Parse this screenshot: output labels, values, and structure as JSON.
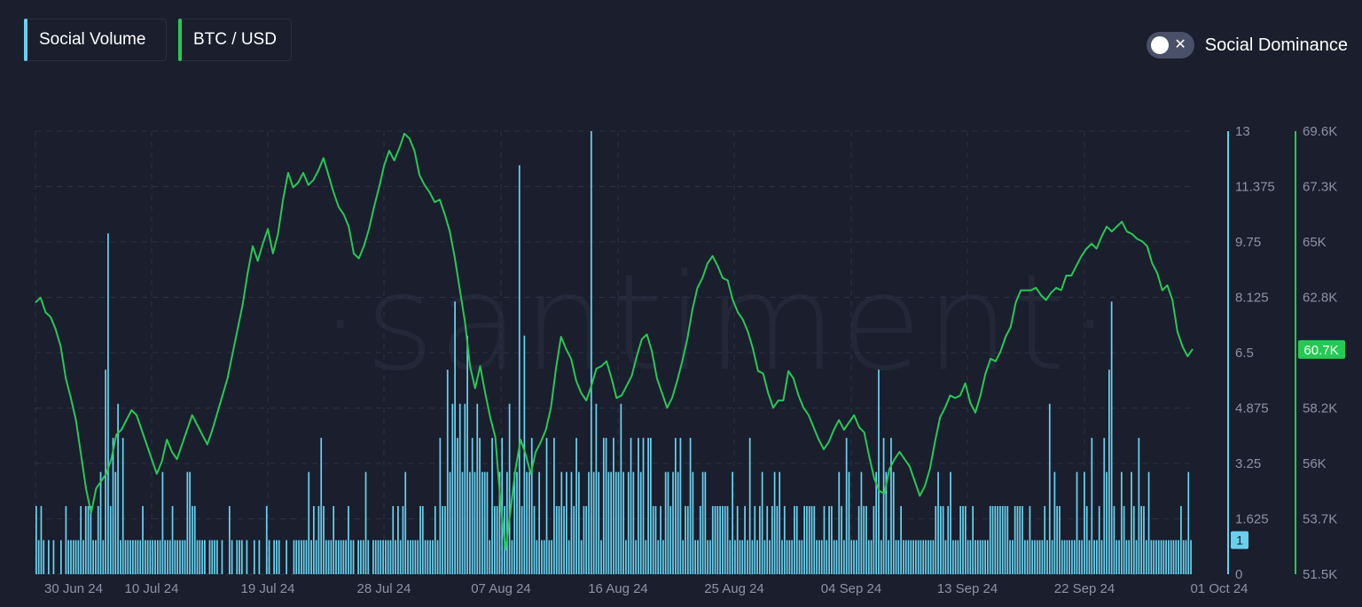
{
  "legend": {
    "social_volume": {
      "label": "Social Volume",
      "color": "#68d1ee"
    },
    "btc_usd": {
      "label": "BTC / USD",
      "color": "#26c953"
    }
  },
  "toggle": {
    "label": "Social Dominance",
    "state": "off",
    "off_glyph": "✕"
  },
  "watermark": "·santiment·",
  "chart_data": {
    "type": "bar+line",
    "x_labels": [
      "30 Jun 24",
      "10 Jul 24",
      "19 Jul 24",
      "28 Jul 24",
      "07 Aug 24",
      "16 Aug 24",
      "25 Aug 24",
      "04 Sep 24",
      "13 Sep 24",
      "22 Sep 24",
      "01 Oct 24"
    ],
    "x_range": [
      "2024-06-25",
      "2024-09-30"
    ],
    "grid": true,
    "series": [
      {
        "name": "Social Volume",
        "type": "bar",
        "axis": "right-inner",
        "color": "#68d1ee",
        "ylim": [
          0,
          13
        ],
        "y_ticks": [
          "0",
          "1.625",
          "3.25",
          "4.875",
          "6.5",
          "8.125",
          "9.75",
          "11.375",
          "13"
        ],
        "current_value": "1",
        "values": [
          2,
          1,
          2,
          1,
          0,
          1,
          0,
          1,
          0,
          0,
          1,
          0,
          2,
          1,
          1,
          1,
          1,
          1,
          2,
          1,
          2,
          2,
          2,
          1,
          1,
          2,
          3,
          1,
          6,
          10,
          2,
          4,
          3,
          5,
          1,
          4,
          1,
          1,
          1,
          1,
          1,
          1,
          1,
          2,
          1,
          1,
          1,
          1,
          1,
          1,
          1,
          3,
          1,
          1,
          1,
          2,
          1,
          1,
          1,
          1,
          1,
          3,
          3,
          2,
          2,
          1,
          1,
          1,
          1,
          0,
          1,
          1,
          1,
          1,
          0,
          1,
          0,
          0,
          2,
          1,
          0,
          1,
          1,
          1,
          0,
          1,
          0,
          0,
          1,
          0,
          1,
          0,
          0,
          2,
          1,
          0,
          1,
          1,
          1,
          0,
          0,
          1,
          0,
          0,
          1,
          1,
          1,
          1,
          1,
          1,
          3,
          1,
          2,
          1,
          2,
          4,
          2,
          1,
          1,
          1,
          2,
          1,
          1,
          1,
          1,
          1,
          2,
          1,
          1,
          0,
          1,
          1,
          1,
          3,
          1,
          0,
          1,
          1,
          1,
          1,
          1,
          1,
          1,
          1,
          2,
          1,
          2,
          1,
          2,
          3,
          1,
          1,
          1,
          1,
          1,
          2,
          2,
          1,
          1,
          1,
          1,
          2,
          1,
          4,
          2,
          2,
          6,
          3,
          5,
          8,
          4,
          5,
          3,
          5,
          7,
          3,
          4,
          3,
          5,
          4,
          3,
          3,
          3,
          1,
          4,
          2,
          2,
          3,
          4,
          2,
          3,
          5,
          1,
          3,
          3,
          12,
          2,
          7,
          3,
          3,
          4,
          2,
          1,
          3,
          1,
          1,
          4,
          1,
          1,
          4,
          2,
          2,
          3,
          2,
          3,
          1,
          3,
          2,
          4,
          3,
          1,
          2,
          2,
          3,
          13,
          3,
          5,
          3,
          1,
          4,
          4,
          3,
          3,
          4,
          3,
          3,
          5,
          3,
          1,
          3,
          4,
          3,
          1,
          4,
          3,
          4,
          1,
          4,
          4,
          2,
          2,
          1,
          2,
          1,
          3,
          3,
          2,
          3,
          4,
          3,
          4,
          1,
          2,
          2,
          4,
          3,
          1,
          1,
          2,
          3,
          3,
          1,
          1,
          2,
          2,
          2,
          2,
          2,
          2,
          2,
          1,
          3,
          1,
          2,
          1,
          1,
          2,
          1,
          4,
          1,
          2,
          1,
          2,
          3,
          1,
          2,
          1,
          2,
          3,
          2,
          3,
          1,
          2,
          1,
          1,
          1,
          2,
          2,
          1,
          1,
          2,
          2,
          2,
          2,
          2,
          1,
          1,
          1,
          2,
          1,
          2,
          2,
          1,
          1,
          3,
          2,
          1,
          4,
          3,
          1,
          1,
          1,
          2,
          3,
          2,
          2,
          1,
          1,
          2,
          3,
          6,
          1,
          4,
          3,
          1,
          4,
          3,
          1,
          1,
          2,
          1,
          1,
          1,
          1,
          1,
          1,
          1,
          1,
          1,
          1,
          1,
          1,
          1,
          2,
          3,
          2,
          2,
          1,
          2,
          3,
          1,
          1,
          1,
          2,
          2,
          2,
          1,
          1,
          2,
          1,
          1,
          1,
          1,
          1,
          1,
          2,
          2,
          2,
          2,
          2,
          2,
          2,
          2,
          1,
          1,
          2,
          2,
          2,
          2,
          1,
          1,
          2,
          1,
          1,
          1,
          1,
          1,
          2,
          1,
          5,
          1,
          3,
          2,
          2,
          1,
          1,
          1,
          1,
          1,
          1,
          3,
          1,
          1,
          3,
          2,
          1,
          4,
          1,
          1,
          2,
          1,
          4,
          3,
          6,
          8,
          2,
          1,
          1,
          3,
          2,
          1,
          1,
          3,
          2,
          1,
          4,
          2,
          2,
          1,
          3,
          1,
          1,
          1,
          1,
          1,
          1,
          1,
          1,
          1,
          1,
          1,
          1,
          2,
          1,
          1,
          3,
          1
        ]
      },
      {
        "name": "BTC / USD",
        "type": "line",
        "axis": "right-outer",
        "color": "#26c953",
        "ylim": [
          51500,
          69600
        ],
        "y_ticks": [
          "51.5K",
          "53.7K",
          "56K",
          "58.2K",
          "60.7K",
          "62.8K",
          "65K",
          "67.3K",
          "69.6K"
        ],
        "current_value": "60.7K",
        "values": [
          62600,
          62800,
          62200,
          62000,
          61500,
          60800,
          59500,
          58700,
          57800,
          56400,
          55000,
          54000,
          55000,
          55300,
          55600,
          56200,
          57200,
          57400,
          57800,
          58200,
          58000,
          57400,
          56800,
          56200,
          55600,
          56100,
          57000,
          56500,
          56200,
          56800,
          57400,
          58000,
          57600,
          57200,
          56800,
          57400,
          58100,
          58800,
          59500,
          60500,
          61500,
          62500,
          63800,
          64900,
          64300,
          65000,
          65600,
          64600,
          65400,
          66800,
          67900,
          67300,
          67500,
          67900,
          67400,
          67600,
          68000,
          68500,
          67800,
          67100,
          66500,
          66200,
          65700,
          64600,
          64400,
          64900,
          65600,
          66500,
          67300,
          68200,
          68800,
          68400,
          68900,
          69500,
          69300,
          68800,
          67800,
          67400,
          67100,
          66700,
          66800,
          66200,
          65500,
          64400,
          63100,
          61800,
          60000,
          59100,
          60000,
          58900,
          57900,
          57100,
          54500,
          52500,
          54100,
          55800,
          57000,
          56400,
          55600,
          56500,
          56900,
          57400,
          58300,
          59900,
          61200,
          60700,
          60300,
          59400,
          58900,
          58600,
          59200,
          59900,
          60000,
          60200,
          59500,
          58700,
          58800,
          59200,
          59600,
          60400,
          61100,
          61300,
          60600,
          59500,
          58900,
          58300,
          58700,
          59400,
          60200,
          61100,
          62300,
          63200,
          63600,
          64200,
          64500,
          64100,
          63600,
          63500,
          62700,
          62200,
          61900,
          61400,
          60700,
          59800,
          59700,
          58900,
          58300,
          58600,
          58600,
          59800,
          59500,
          58800,
          58300,
          58000,
          57500,
          57000,
          56600,
          56900,
          57400,
          57800,
          57400,
          57700,
          58000,
          57500,
          57300,
          56300,
          55400,
          54900,
          54800,
          55800,
          56200,
          56500,
          56200,
          55900,
          55300,
          54700,
          55100,
          55800,
          56900,
          57900,
          58300,
          58800,
          58700,
          58800,
          59300,
          58500,
          58100,
          58800,
          59700,
          60300,
          60200,
          60600,
          61200,
          61600,
          62600,
          63100,
          63100,
          63100,
          63200,
          62900,
          62700,
          63000,
          63200,
          63100,
          63700,
          63700,
          64100,
          64500,
          64800,
          65000,
          64800,
          65300,
          65700,
          65500,
          65700,
          65900,
          65500,
          65400,
          65200,
          65100,
          64900,
          64200,
          63800,
          63100,
          63300,
          62700,
          61400,
          60800,
          60400,
          60700
        ]
      }
    ]
  }
}
